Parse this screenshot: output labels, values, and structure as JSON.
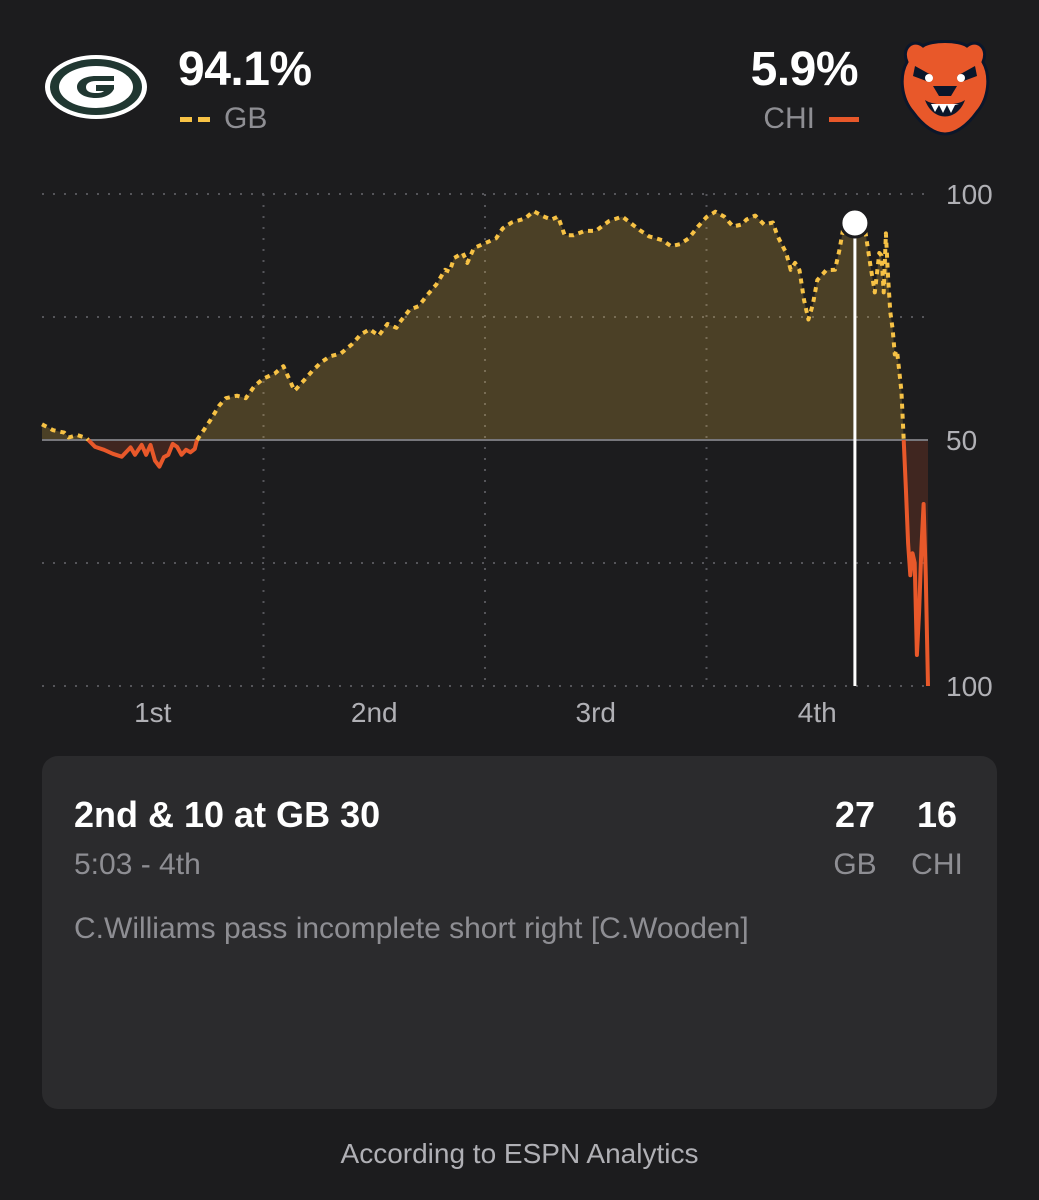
{
  "home": {
    "abbr": "GB",
    "win_pct": "94.1%",
    "logo_icon": "packers-g-logo-icon",
    "color": "#f7c245",
    "score": "27"
  },
  "away": {
    "abbr": "CHI",
    "win_pct": "5.9%",
    "logo_icon": "bears-head-logo-icon",
    "color": "#e8582a",
    "score": "16"
  },
  "chart_data": {
    "type": "line",
    "x_unit": "game progress (quarters)",
    "x_range": [
      0,
      4
    ],
    "xticks": [
      {
        "value": 0.5,
        "label": "1st"
      },
      {
        "value": 1.5,
        "label": "2nd"
      },
      {
        "value": 2.5,
        "label": "3rd"
      },
      {
        "value": 3.5,
        "label": "4th"
      }
    ],
    "ylim": [
      0,
      100
    ],
    "yticks": [
      {
        "value": 100,
        "label": "100"
      },
      {
        "value": 50,
        "label": "50"
      },
      {
        "value": 0,
        "label": "100"
      }
    ],
    "baseline": 50,
    "grid": true,
    "current_x": 3.67,
    "current_y": 94.1,
    "points": [
      [
        0,
        53.2
      ],
      [
        0.05,
        52
      ],
      [
        0.1,
        51.5
      ],
      [
        0.12,
        50.5
      ],
      [
        0.16,
        51
      ],
      [
        0.2,
        50.4
      ],
      [
        0.24,
        48.6
      ],
      [
        0.28,
        48
      ],
      [
        0.32,
        47.2
      ],
      [
        0.36,
        46.6
      ],
      [
        0.4,
        48.5
      ],
      [
        0.42,
        47
      ],
      [
        0.45,
        49
      ],
      [
        0.47,
        47
      ],
      [
        0.49,
        49
      ],
      [
        0.51,
        45.8
      ],
      [
        0.53,
        44.6
      ],
      [
        0.55,
        46.5
      ],
      [
        0.57,
        47
      ],
      [
        0.59,
        49.2
      ],
      [
        0.61,
        48.6
      ],
      [
        0.63,
        47
      ],
      [
        0.65,
        48
      ],
      [
        0.67,
        47.5
      ],
      [
        0.69,
        48.2
      ],
      [
        0.7,
        50
      ],
      [
        0.73,
        52
      ],
      [
        0.76,
        54
      ],
      [
        0.8,
        57
      ],
      [
        0.83,
        58.5
      ],
      [
        0.88,
        59
      ],
      [
        0.92,
        58.5
      ],
      [
        0.96,
        61
      ],
      [
        1.0,
        62.5
      ],
      [
        1.05,
        63.5
      ],
      [
        1.09,
        65
      ],
      [
        1.12,
        62
      ],
      [
        1.14,
        60
      ],
      [
        1.18,
        62
      ],
      [
        1.22,
        64
      ],
      [
        1.26,
        65.8
      ],
      [
        1.3,
        67
      ],
      [
        1.35,
        67.6
      ],
      [
        1.4,
        69.5
      ],
      [
        1.44,
        71.5
      ],
      [
        1.48,
        72.5
      ],
      [
        1.52,
        71.2
      ],
      [
        1.56,
        73.6
      ],
      [
        1.6,
        72.8
      ],
      [
        1.62,
        74.2
      ],
      [
        1.66,
        76.5
      ],
      [
        1.7,
        77.2
      ],
      [
        1.74,
        79.5
      ],
      [
        1.78,
        81.6
      ],
      [
        1.82,
        84.6
      ],
      [
        1.84,
        84.2
      ],
      [
        1.86,
        87
      ],
      [
        1.9,
        88
      ],
      [
        1.92,
        86
      ],
      [
        1.95,
        89
      ],
      [
        2.0,
        90
      ],
      [
        2.05,
        91
      ],
      [
        2.08,
        93
      ],
      [
        2.12,
        94.2
      ],
      [
        2.18,
        95
      ],
      [
        2.22,
        96.5
      ],
      [
        2.26,
        95.5
      ],
      [
        2.3,
        94.8
      ],
      [
        2.33,
        95.4
      ],
      [
        2.36,
        91.6
      ],
      [
        2.4,
        91.6
      ],
      [
        2.45,
        92.5
      ],
      [
        2.5,
        92.5
      ],
      [
        2.56,
        94.5
      ],
      [
        2.62,
        95.4
      ],
      [
        2.66,
        94
      ],
      [
        2.7,
        92.6
      ],
      [
        2.74,
        91.4
      ],
      [
        2.8,
        90.6
      ],
      [
        2.84,
        89.4
      ],
      [
        2.88,
        89.8
      ],
      [
        2.92,
        91
      ],
      [
        2.96,
        93.3
      ],
      [
        3.0,
        95.3
      ],
      [
        3.04,
        96.4
      ],
      [
        3.08,
        95.4
      ],
      [
        3.12,
        93.4
      ],
      [
        3.16,
        93.8
      ],
      [
        3.18,
        94.8
      ],
      [
        3.22,
        95.6
      ],
      [
        3.26,
        93.8
      ],
      [
        3.3,
        94.2
      ],
      [
        3.32,
        91.5
      ],
      [
        3.36,
        88
      ],
      [
        3.38,
        84.6
      ],
      [
        3.4,
        86
      ],
      [
        3.42,
        84.5
      ],
      [
        3.44,
        78.5
      ],
      [
        3.46,
        74.5
      ],
      [
        3.48,
        77.5
      ],
      [
        3.5,
        82.5
      ],
      [
        3.54,
        84.5
      ],
      [
        3.58,
        84.6
      ],
      [
        3.6,
        88.6
      ],
      [
        3.62,
        93.6
      ],
      [
        3.64,
        95.4
      ],
      [
        3.66,
        96
      ],
      [
        3.68,
        94
      ],
      [
        3.7,
        96.6
      ],
      [
        3.72,
        91.5
      ],
      [
        3.74,
        85.5
      ],
      [
        3.76,
        80
      ],
      [
        3.78,
        88
      ],
      [
        3.79,
        87.5
      ],
      [
        3.8,
        80
      ],
      [
        3.81,
        92
      ],
      [
        3.82,
        83
      ],
      [
        3.83,
        76
      ],
      [
        3.84,
        72.6
      ],
      [
        3.85,
        67.4
      ],
      [
        3.86,
        68.2
      ],
      [
        3.88,
        60
      ],
      [
        3.89,
        50.5
      ],
      [
        3.9,
        40
      ],
      [
        3.91,
        29
      ],
      [
        3.92,
        22.5
      ],
      [
        3.93,
        27
      ],
      [
        3.94,
        25
      ],
      [
        3.95,
        6.3
      ],
      [
        3.96,
        15
      ],
      [
        3.97,
        28
      ],
      [
        3.98,
        37
      ],
      [
        3.99,
        22
      ],
      [
        4.0,
        0
      ]
    ]
  },
  "play": {
    "down_distance": "2nd & 10 at GB 30",
    "clock": "5:03 - 4th",
    "description": "C.Williams pass incomplete short right [C.Wooden]"
  },
  "footer": "According to ESPN Analytics"
}
